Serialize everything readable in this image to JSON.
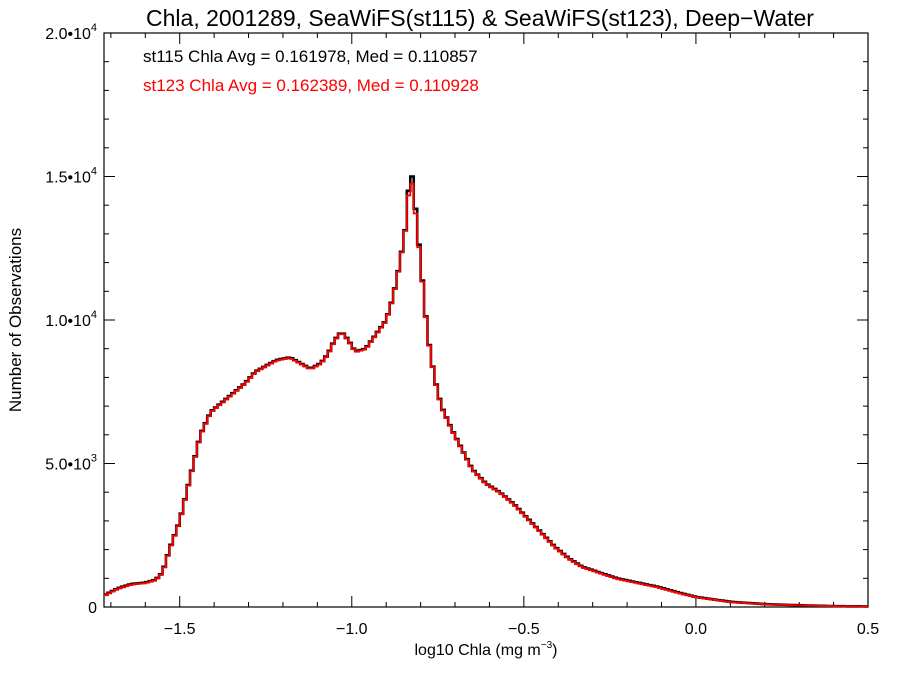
{
  "chart_data": {
    "type": "histogram-step",
    "title": "Chla, 2001289, SeaWiFS(st115) & SeaWiFS(st123), Deep−Water",
    "xlabel_main": "log10 Chla (mg m",
    "xlabel_sup": "−3",
    "xlabel_close": ")",
    "ylabel": "Number of Observations",
    "xlim": [
      -1.72,
      0.5
    ],
    "ylim": [
      0,
      20000
    ],
    "x_ticks": [
      {
        "value": -1.5,
        "label": "−1.5"
      },
      {
        "value": -1.0,
        "label": "−1.0"
      },
      {
        "value": -0.5,
        "label": "−0.5"
      },
      {
        "value": 0.0,
        "label": "0.0"
      },
      {
        "value": 0.5,
        "label": "0.5"
      }
    ],
    "y_ticks": [
      {
        "value": 0,
        "mant": "0",
        "exp": ""
      },
      {
        "value": 5000,
        "mant": "5.0•10",
        "exp": "3"
      },
      {
        "value": 10000,
        "mant": "1.0•10",
        "exp": "4"
      },
      {
        "value": 15000,
        "mant": "1.5•10",
        "exp": "4"
      },
      {
        "value": 20000,
        "mant": "2.0•10",
        "exp": "4"
      }
    ],
    "annotations": [
      {
        "text": "st115 Chla Avg = 0.161978, Med = 0.110857",
        "color": "#000000"
      },
      {
        "text": "st123 Chla Avg = 0.162389, Med = 0.110928",
        "color": "#ff0000"
      }
    ],
    "bin_width": 0.01,
    "series": [
      {
        "label": "st115",
        "color": "#000000",
        "points": [
          [
            -1.72,
            400
          ],
          [
            -1.68,
            650
          ],
          [
            -1.64,
            800
          ],
          [
            -1.6,
            850
          ],
          [
            -1.57,
            950
          ],
          [
            -1.55,
            1200
          ],
          [
            -1.53,
            2000
          ],
          [
            -1.5,
            3000
          ],
          [
            -1.47,
            4500
          ],
          [
            -1.44,
            6000
          ],
          [
            -1.41,
            6800
          ],
          [
            -1.38,
            7100
          ],
          [
            -1.35,
            7400
          ],
          [
            -1.31,
            7800
          ],
          [
            -1.28,
            8200
          ],
          [
            -1.25,
            8400
          ],
          [
            -1.22,
            8600
          ],
          [
            -1.18,
            8700
          ],
          [
            -1.15,
            8500
          ],
          [
            -1.12,
            8300
          ],
          [
            -1.09,
            8500
          ],
          [
            -1.07,
            8800
          ],
          [
            -1.05,
            9300
          ],
          [
            -1.03,
            9600
          ],
          [
            -1.01,
            9300
          ],
          [
            -0.99,
            8900
          ],
          [
            -0.96,
            9000
          ],
          [
            -0.93,
            9500
          ],
          [
            -0.9,
            10000
          ],
          [
            -0.88,
            10800
          ],
          [
            -0.86,
            12000
          ],
          [
            -0.84,
            13500
          ],
          [
            -0.83,
            15500
          ],
          [
            -0.82,
            14500
          ],
          [
            -0.8,
            12000
          ],
          [
            -0.78,
            9500
          ],
          [
            -0.76,
            8000
          ],
          [
            -0.74,
            7000
          ],
          [
            -0.71,
            6200
          ],
          [
            -0.68,
            5500
          ],
          [
            -0.65,
            4800
          ],
          [
            -0.61,
            4300
          ],
          [
            -0.57,
            4000
          ],
          [
            -0.53,
            3600
          ],
          [
            -0.49,
            3100
          ],
          [
            -0.45,
            2600
          ],
          [
            -0.41,
            2100
          ],
          [
            -0.37,
            1700
          ],
          [
            -0.33,
            1400
          ],
          [
            -0.28,
            1200
          ],
          [
            -0.23,
            1000
          ],
          [
            -0.17,
            850
          ],
          [
            -0.11,
            700
          ],
          [
            -0.05,
            500
          ],
          [
            0.0,
            350
          ],
          [
            0.1,
            180
          ],
          [
            0.2,
            100
          ],
          [
            0.3,
            60
          ],
          [
            0.4,
            30
          ],
          [
            0.5,
            20
          ]
        ]
      },
      {
        "label": "st123",
        "color": "#ff0000",
        "points": [
          [
            -1.72,
            380
          ],
          [
            -1.68,
            630
          ],
          [
            -1.64,
            780
          ],
          [
            -1.6,
            830
          ],
          [
            -1.57,
            930
          ],
          [
            -1.55,
            1180
          ],
          [
            -1.53,
            1980
          ],
          [
            -1.5,
            2980
          ],
          [
            -1.47,
            4480
          ],
          [
            -1.44,
            5980
          ],
          [
            -1.41,
            6780
          ],
          [
            -1.38,
            7080
          ],
          [
            -1.35,
            7380
          ],
          [
            -1.31,
            7780
          ],
          [
            -1.28,
            8180
          ],
          [
            -1.25,
            8380
          ],
          [
            -1.22,
            8580
          ],
          [
            -1.18,
            8680
          ],
          [
            -1.15,
            8480
          ],
          [
            -1.12,
            8280
          ],
          [
            -1.09,
            8480
          ],
          [
            -1.07,
            8780
          ],
          [
            -1.05,
            9280
          ],
          [
            -1.03,
            9580
          ],
          [
            -1.01,
            9280
          ],
          [
            -0.99,
            8880
          ],
          [
            -0.96,
            8980
          ],
          [
            -0.93,
            9480
          ],
          [
            -0.9,
            9980
          ],
          [
            -0.88,
            10780
          ],
          [
            -0.86,
            11980
          ],
          [
            -0.84,
            13480
          ],
          [
            -0.83,
            15200
          ],
          [
            -0.82,
            14300
          ],
          [
            -0.8,
            11950
          ],
          [
            -0.78,
            9480
          ],
          [
            -0.76,
            7980
          ],
          [
            -0.74,
            6980
          ],
          [
            -0.71,
            6180
          ],
          [
            -0.68,
            5480
          ],
          [
            -0.65,
            4780
          ],
          [
            -0.61,
            4280
          ],
          [
            -0.57,
            3980
          ],
          [
            -0.53,
            3580
          ],
          [
            -0.49,
            3080
          ],
          [
            -0.45,
            2580
          ],
          [
            -0.41,
            2080
          ],
          [
            -0.37,
            1680
          ],
          [
            -0.33,
            1380
          ],
          [
            -0.28,
            1180
          ],
          [
            -0.23,
            980
          ],
          [
            -0.17,
            830
          ],
          [
            -0.11,
            680
          ],
          [
            -0.05,
            480
          ],
          [
            0.0,
            340
          ],
          [
            0.1,
            170
          ],
          [
            0.2,
            95
          ],
          [
            0.3,
            55
          ],
          [
            0.4,
            28
          ],
          [
            0.5,
            18
          ]
        ]
      }
    ]
  }
}
